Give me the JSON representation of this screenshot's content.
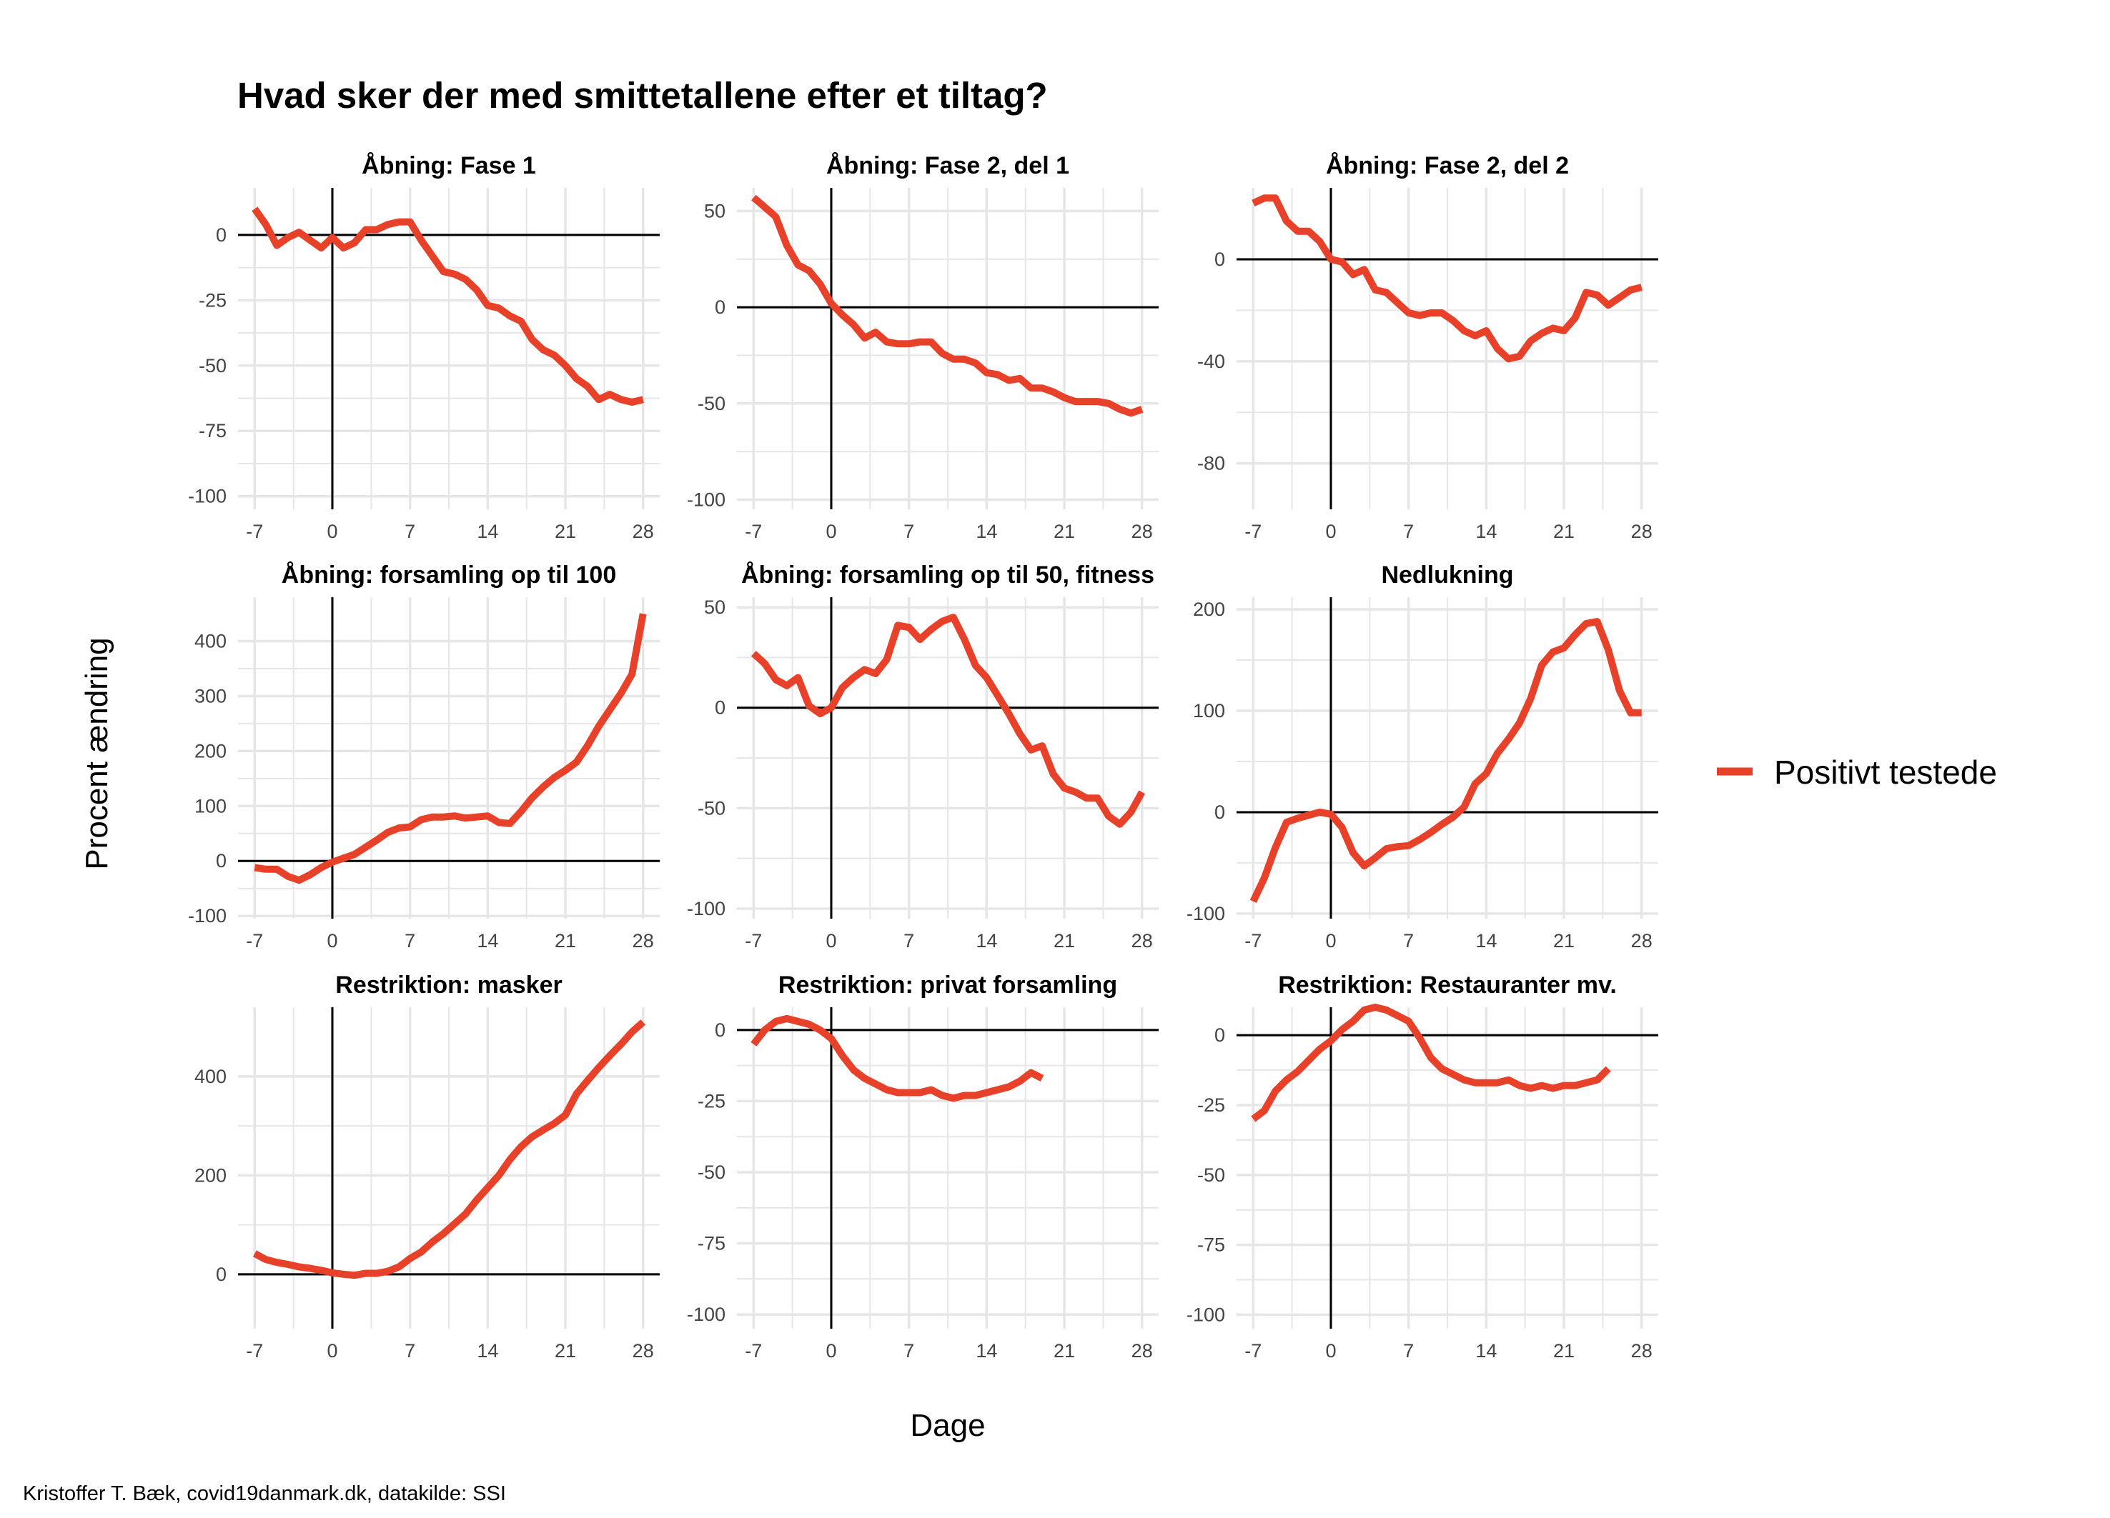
{
  "title": "Hvad sker der med smittetallene efter et tiltag?",
  "xlabel": "Dage",
  "ylabel": "Procent ændring",
  "caption": "Kristoffer T. Bæk, covid19danmark.dk, datakilde: SSI",
  "legend": {
    "label": "Positivt testede",
    "position": "right"
  },
  "colors": {
    "line": "#E8412A",
    "grid": "#E6E6E6",
    "zero_line": "#000000",
    "text": "#000000",
    "tick_text": "#444444"
  },
  "chart_data": {
    "type": "line",
    "grid": true,
    "x_ticks": [
      -7,
      0,
      7,
      14,
      21,
      28
    ],
    "panels": [
      {
        "title": "Åbning: Fase 1",
        "ylim": [
          -105,
          18
        ],
        "y_ticks": [
          0,
          -25,
          -50,
          -75,
          -100
        ],
        "series": [
          {
            "name": "Positivt testede",
            "x": [
              -7,
              -6,
              -5,
              -4,
              -3,
              -2,
              -1,
              0,
              1,
              2,
              3,
              4,
              5,
              6,
              7,
              8,
              9,
              10,
              11,
              12,
              13,
              14,
              15,
              16,
              17,
              18,
              19,
              20,
              21,
              22,
              23,
              24,
              25,
              26,
              27,
              28
            ],
            "y": [
              10,
              4,
              -4,
              -1,
              1,
              -2,
              -5,
              -1,
              -5,
              -3,
              2,
              2,
              4,
              5,
              5,
              -2,
              -8,
              -14,
              -15,
              -17,
              -21,
              -27,
              -28,
              -31,
              -33,
              -40,
              -44,
              -46,
              -50,
              -55,
              -58,
              -63,
              -61,
              -63,
              -64,
              -63
            ]
          }
        ]
      },
      {
        "title": "Åbning: Fase 2, del 1",
        "ylim": [
          -105,
          62
        ],
        "y_ticks": [
          50,
          0,
          -50,
          -100
        ],
        "series": [
          {
            "name": "Positivt testede",
            "x": [
              -7,
              -6,
              -5,
              -4,
              -3,
              -2,
              -1,
              0,
              1,
              2,
              3,
              4,
              5,
              6,
              7,
              8,
              9,
              10,
              11,
              12,
              13,
              14,
              15,
              16,
              17,
              18,
              19,
              20,
              21,
              22,
              23,
              24,
              25,
              26,
              27,
              28
            ],
            "y": [
              57,
              52,
              47,
              32,
              22,
              19,
              12,
              2,
              -4,
              -9,
              -16,
              -13,
              -18,
              -19,
              -19,
              -18,
              -18,
              -24,
              -27,
              -27,
              -29,
              -34,
              -35,
              -38,
              -37,
              -42,
              -42,
              -44,
              -47,
              -49,
              -49,
              -49,
              -50,
              -53,
              -55,
              -53
            ]
          }
        ]
      },
      {
        "title": "Åbning: Fase 2, del 2",
        "ylim": [
          -98,
          28
        ],
        "y_ticks": [
          0,
          -40,
          -80
        ],
        "series": [
          {
            "name": "Positivt testede",
            "x": [
              -7,
              -6,
              -5,
              -4,
              -3,
              -2,
              -1,
              0,
              1,
              2,
              3,
              4,
              5,
              6,
              7,
              8,
              9,
              10,
              11,
              12,
              13,
              14,
              15,
              16,
              17,
              18,
              19,
              20,
              21,
              22,
              23,
              24,
              25,
              26,
              27,
              28
            ],
            "y": [
              22,
              24,
              24,
              15,
              11,
              11,
              7,
              0,
              -1,
              -6,
              -4,
              -12,
              -13,
              -17,
              -21,
              -22,
              -21,
              -21,
              -24,
              -28,
              -30,
              -28,
              -35,
              -39,
              -38,
              -32,
              -29,
              -27,
              -28,
              -23,
              -13,
              -14,
              -18,
              -15,
              -12,
              -11
            ]
          }
        ]
      },
      {
        "title": "Åbning: forsamling op til 100",
        "ylim": [
          -105,
          480
        ],
        "y_ticks": [
          400,
          300,
          200,
          100,
          0,
          -100
        ],
        "series": [
          {
            "name": "Positivt testede",
            "x": [
              -7,
              -6,
              -5,
              -4,
              -3,
              -2,
              -1,
              0,
              1,
              2,
              3,
              4,
              5,
              6,
              7,
              8,
              9,
              10,
              11,
              12,
              13,
              14,
              15,
              16,
              17,
              18,
              19,
              20,
              21,
              22,
              23,
              24,
              25,
              26,
              27,
              28
            ],
            "y": [
              -12,
              -15,
              -15,
              -28,
              -35,
              -25,
              -12,
              -2,
              5,
              12,
              25,
              38,
              52,
              60,
              62,
              75,
              80,
              80,
              82,
              78,
              80,
              82,
              70,
              68,
              90,
              115,
              135,
              152,
              165,
              180,
              210,
              245,
              275,
              305,
              340,
              450
            ]
          }
        ]
      },
      {
        "title": "Åbning: forsamling op til 50, fitness",
        "ylim": [
          -105,
          55
        ],
        "y_ticks": [
          50,
          0,
          -50,
          -100
        ],
        "series": [
          {
            "name": "Positivt testede",
            "x": [
              -7,
              -6,
              -5,
              -4,
              -3,
              -2,
              -1,
              0,
              1,
              2,
              3,
              4,
              5,
              6,
              7,
              8,
              9,
              10,
              11,
              12,
              13,
              14,
              15,
              16,
              17,
              18,
              19,
              20,
              21,
              22,
              23,
              24,
              25,
              26,
              27,
              28
            ],
            "y": [
              27,
              22,
              14,
              11,
              15,
              1,
              -3,
              0,
              10,
              15,
              19,
              17,
              24,
              41,
              40,
              34,
              39,
              43,
              45,
              34,
              21,
              15,
              6,
              -3,
              -13,
              -21,
              -19,
              -33,
              -40,
              -42,
              -45,
              -45,
              -54,
              -58,
              -52,
              -42
            ]
          }
        ]
      },
      {
        "title": "Nedlukning",
        "ylim": [
          -105,
          212
        ],
        "y_ticks": [
          200,
          100,
          0,
          -100
        ],
        "series": [
          {
            "name": "Positivt testede",
            "x": [
              -7,
              -6,
              -5,
              -4,
              -3,
              -2,
              -1,
              0,
              1,
              2,
              3,
              4,
              5,
              6,
              7,
              8,
              9,
              10,
              11,
              12,
              13,
              14,
              15,
              16,
              17,
              18,
              19,
              20,
              21,
              22,
              23,
              24,
              25,
              26,
              27,
              28
            ],
            "y": [
              -88,
              -65,
              -35,
              -10,
              -6,
              -3,
              0,
              -2,
              -15,
              -40,
              -53,
              -45,
              -36,
              -34,
              -33,
              -27,
              -20,
              -12,
              -5,
              5,
              28,
              38,
              58,
              72,
              88,
              112,
              145,
              158,
              162,
              175,
              186,
              188,
              160,
              120,
              98,
              98
            ]
          }
        ]
      },
      {
        "title": "Restriktion: masker",
        "ylim": [
          -110,
          540
        ],
        "y_ticks": [
          400,
          200,
          0
        ],
        "series": [
          {
            "name": "Positivt testede",
            "x": [
              -7,
              -6,
              -5,
              -4,
              -3,
              -2,
              -1,
              0,
              1,
              2,
              3,
              4,
              5,
              6,
              7,
              8,
              9,
              10,
              11,
              12,
              13,
              14,
              15,
              16,
              17,
              18,
              19,
              20,
              21,
              22,
              23,
              24,
              25,
              26,
              27,
              28
            ],
            "y": [
              42,
              30,
              24,
              20,
              15,
              12,
              8,
              3,
              0,
              -2,
              2,
              2,
              6,
              15,
              32,
              45,
              65,
              82,
              102,
              122,
              150,
              175,
              200,
              232,
              258,
              278,
              292,
              305,
              322,
              365,
              392,
              418,
              442,
              465,
              490,
              510
            ]
          }
        ]
      },
      {
        "title": "Restriktion: privat forsamling",
        "ylim": [
          -105,
          8
        ],
        "y_ticks": [
          0,
          -25,
          -50,
          -75,
          -100
        ],
        "series": [
          {
            "name": "Positivt testede",
            "x": [
              -7,
              -6,
              -5,
              -4,
              -3,
              -2,
              -1,
              0,
              1,
              2,
              3,
              4,
              5,
              6,
              7,
              8,
              9,
              10,
              11,
              12,
              13,
              14,
              15,
              16,
              17,
              18,
              19
            ],
            "y": [
              -5,
              0,
              3,
              4,
              3,
              2,
              0,
              -3,
              -9,
              -14,
              -17,
              -19,
              -21,
              -22,
              -22,
              -22,
              -21,
              -23,
              -24,
              -23,
              -23,
              -22,
              -21,
              -20,
              -18,
              -15,
              -17
            ]
          }
        ]
      },
      {
        "title": "Restriktion: Restauranter mv.",
        "ylim": [
          -105,
          10
        ],
        "y_ticks": [
          0,
          -25,
          -50,
          -75,
          -100
        ],
        "series": [
          {
            "name": "Positivt testede",
            "x": [
              -7,
              -6,
              -5,
              -4,
              -3,
              -2,
              -1,
              0,
              1,
              2,
              3,
              4,
              5,
              6,
              7,
              8,
              9,
              10,
              11,
              12,
              13,
              14,
              15,
              16,
              17,
              18,
              19,
              20,
              21,
              22,
              23,
              24,
              25
            ],
            "y": [
              -30,
              -27,
              -20,
              -16,
              -13,
              -9,
              -5,
              -2,
              2,
              5,
              9,
              10,
              9,
              7,
              5,
              -1,
              -8,
              -12,
              -14,
              -16,
              -17,
              -17,
              -17,
              -16,
              -18,
              -19,
              -18,
              -19,
              -18,
              -18,
              -17,
              -16,
              -12
            ]
          }
        ]
      }
    ]
  }
}
